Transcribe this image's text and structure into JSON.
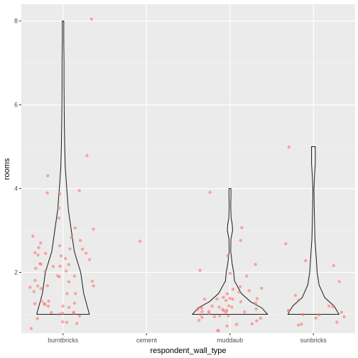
{
  "chart_data": {
    "type": "violin",
    "xlabel": "respondent_wall_type",
    "ylabel": "rooms",
    "categories": [
      "burntbricks",
      "cement",
      "muddaub",
      "sunbricks"
    ],
    "yticks": [
      2,
      4,
      6,
      8
    ],
    "ylim": [
      0.55,
      8.4
    ],
    "grid": true,
    "colors": {
      "panel": "#ebebeb",
      "grid_major": "#ffffff",
      "grid_minor": "#f5f5f5",
      "points": "#f8766d",
      "violin_stroke": "#1a1a1a",
      "tick_label": "#4d4d4d"
    },
    "violins": [
      {
        "category": "burntbricks",
        "profile": [
          [
            1,
            0.7
          ],
          [
            1.5,
            0.55
          ],
          [
            2,
            0.47
          ],
          [
            2.5,
            0.3
          ],
          [
            3,
            0.22
          ],
          [
            3.5,
            0.14
          ],
          [
            4,
            0.1
          ],
          [
            4.5,
            0.06
          ],
          [
            5,
            0.045
          ],
          [
            5.5,
            0.035
          ],
          [
            6,
            0.03
          ],
          [
            6.5,
            0.025
          ],
          [
            7,
            0.025
          ],
          [
            7.5,
            0.02
          ],
          [
            8,
            0.02
          ]
        ]
      },
      {
        "category": "muddaub",
        "profile": [
          [
            1,
            1.0
          ],
          [
            1.15,
            0.85
          ],
          [
            1.3,
            0.55
          ],
          [
            1.5,
            0.3
          ],
          [
            1.8,
            0.12
          ],
          [
            2,
            0.1
          ],
          [
            2.2,
            0.06
          ],
          [
            2.5,
            0.02
          ],
          [
            2.8,
            0.025
          ],
          [
            3,
            0.07
          ],
          [
            3.15,
            0.06
          ],
          [
            3.3,
            0.03
          ],
          [
            3.6,
            0.02
          ],
          [
            3.8,
            0.025
          ],
          [
            4,
            0.025
          ]
        ]
      },
      {
        "category": "sunbricks",
        "profile": [
          [
            1,
            0.68
          ],
          [
            1.2,
            0.55
          ],
          [
            1.4,
            0.3
          ],
          [
            1.7,
            0.15
          ],
          [
            2,
            0.1
          ],
          [
            2.4,
            0.07
          ],
          [
            2.8,
            0.04
          ],
          [
            3.2,
            0.03
          ],
          [
            3.6,
            0.02
          ],
          [
            4,
            0.015
          ],
          [
            4.3,
            0.03
          ],
          [
            4.6,
            0.05
          ],
          [
            5,
            0.05
          ]
        ]
      }
    ],
    "points": [
      {
        "category": "burntbricks",
        "values": [
          1.0,
          1.0,
          1.0,
          1.1,
          1.2,
          1.2,
          1.2,
          1.3,
          1.4,
          1.5,
          1.5,
          1.6,
          1.7,
          1.8,
          1.9,
          2.0,
          2.0,
          2.0,
          2.1,
          2.1,
          2.2,
          2.3,
          2.3,
          2.5,
          2.6,
          2.7,
          2.7,
          2.8,
          2.9,
          3.0,
          3.1,
          3.3,
          3.4,
          3.9,
          4.0,
          4.1,
          4.2,
          4.6,
          7.9,
          0.9,
          1.0,
          1.1,
          1.3,
          1.4,
          1.5,
          1.7,
          1.8,
          1.9,
          2.0,
          2.2,
          2.3,
          2.4,
          0.8,
          0.7,
          0.9,
          1.1,
          1.8,
          2.0,
          2.2,
          2.6,
          1.0,
          1.2,
          1.6,
          2.1,
          2.7,
          2.9,
          3.0
        ]
      },
      {
        "category": "cement",
        "values": [
          2.9
        ]
      },
      {
        "category": "muddaub",
        "values": [
          1.0,
          1.0,
          1.0,
          1.0,
          1.0,
          1.0,
          1.0,
          1.1,
          1.1,
          1.1,
          1.1,
          1.2,
          1.2,
          1.2,
          1.3,
          1.3,
          1.3,
          1.3,
          1.3,
          1.4,
          1.4,
          1.4,
          1.5,
          1.6,
          1.7,
          1.8,
          2.0,
          2.1,
          2.1,
          2.2,
          2.9,
          3.2,
          3.9,
          0.8,
          0.9,
          0.9,
          1.0,
          1.1,
          1.2,
          0.8,
          0.9,
          1.0,
          1.1,
          1.2,
          1.3,
          1.4,
          0.8,
          0.9,
          0.7,
          1.0,
          1.2,
          1.3
        ]
      },
      {
        "category": "sunbricks",
        "values": [
          1.0,
          1.0,
          1.0,
          1.1,
          1.2,
          1.4,
          1.6,
          2.1,
          2.2,
          2.8,
          4.9,
          0.8,
          0.8,
          0.9,
          1.0,
          1.1,
          1.3,
          1.0,
          0.9
        ]
      }
    ]
  }
}
